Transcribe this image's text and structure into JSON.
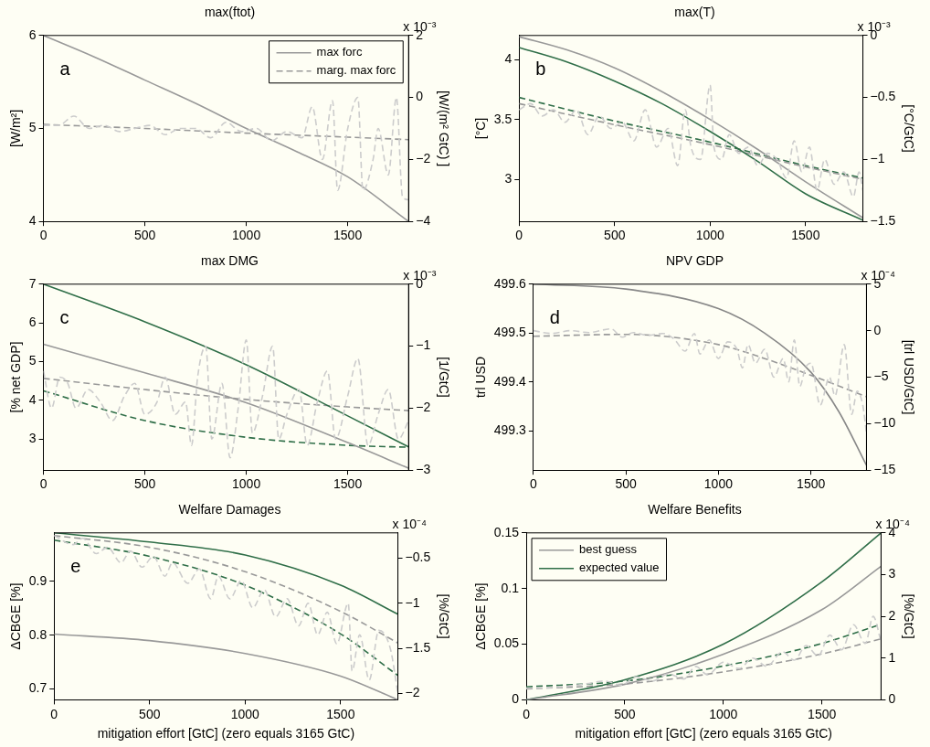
{
  "chart_data": [
    {
      "type": "line",
      "title": "max(ftot)",
      "ylabel": "[W/m²]",
      "y2label": "[W/(m² GtC) ]",
      "annotations": [
        "a",
        "x 10⁻³"
      ],
      "xlim": [
        0,
        1800
      ],
      "xticks": [
        0,
        500,
        1000,
        1500
      ],
      "ylim": [
        4,
        6
      ],
      "yticks": [
        4,
        5,
        6
      ],
      "y2lim": [
        -4,
        2
      ],
      "y2ticks": [
        -4,
        -2,
        0,
        2
      ],
      "legend": "top right",
      "series": [
        {
          "color": "#cccccc",
          "axis": "y2",
          "line_style": "dashed",
          "x": [
            0,
            75,
            150,
            225,
            300,
            375,
            450,
            525,
            600,
            675,
            750,
            825,
            900,
            975,
            1050,
            1125,
            1200,
            1275,
            1325,
            1375,
            1425,
            1450,
            1500,
            1550,
            1575,
            1625,
            1650,
            1700,
            1740,
            1770,
            1800
          ],
          "values": [
            -0.9,
            -0.9,
            -0.6,
            -1.0,
            -0.9,
            -1.1,
            -1.0,
            -0.9,
            -1.2,
            -1.0,
            -1.0,
            -1.3,
            -0.8,
            -1.1,
            -1.0,
            -1.4,
            -1.1,
            -1.3,
            -0.3,
            -2.0,
            -0.1,
            -3.0,
            -1.0,
            0.0,
            -3.0,
            -2.0,
            -1.0,
            -2.5,
            0.0,
            -3.2,
            -3.3
          ]
        },
        {
          "name": "max forc",
          "color": "#999999",
          "line_style": "solid",
          "x": [
            0,
            250,
            500,
            750,
            1000,
            1250,
            1500,
            1800
          ],
          "values": [
            6.0,
            5.77,
            5.52,
            5.27,
            5.0,
            4.75,
            4.48,
            4.0
          ]
        },
        {
          "name": "marg. max forc",
          "color": "#999999",
          "axis": "y2",
          "line_style": "dashed",
          "x": [
            0,
            500,
            1000,
            1500,
            1800
          ],
          "values": [
            -0.87,
            -1.0,
            -1.15,
            -1.28,
            -1.36
          ]
        }
      ]
    },
    {
      "type": "line",
      "title": "max(T)",
      "ylabel": "[°C]",
      "y2label": "[°C/GtC]",
      "annotations": [
        "b",
        "x 10⁻³"
      ],
      "xlim": [
        0,
        1800
      ],
      "xticks": [
        0,
        500,
        1000,
        1500
      ],
      "ylim": [
        2.65,
        4.2
      ],
      "yticks": [
        3,
        3.5,
        4
      ],
      "y2lim": [
        -1.5,
        0
      ],
      "y2ticks": [
        -1.5,
        -1,
        -0.5,
        0
      ],
      "series": [
        {
          "color": "#cccccc",
          "axis": "y2",
          "line_style": "dashed",
          "x": [
            0,
            60,
            120,
            180,
            240,
            300,
            360,
            420,
            480,
            540,
            600,
            660,
            720,
            780,
            830,
            870,
            900,
            950,
            1000,
            1020,
            1060,
            1100,
            1150,
            1200,
            1250,
            1300,
            1350,
            1400,
            1440,
            1480,
            1520,
            1560,
            1600,
            1650,
            1700,
            1750,
            1780,
            1800
          ],
          "values": [
            -0.6,
            -0.55,
            -0.65,
            -0.6,
            -0.7,
            -0.6,
            -0.8,
            -0.65,
            -0.75,
            -0.7,
            -0.85,
            -0.6,
            -0.9,
            -0.75,
            -1.05,
            -0.6,
            -0.9,
            -1.0,
            -0.4,
            -0.9,
            -1.0,
            -0.8,
            -0.95,
            -0.9,
            -1.05,
            -0.95,
            -1.0,
            -1.15,
            -0.85,
            -1.1,
            -0.9,
            -1.25,
            -1.0,
            -1.2,
            -1.1,
            -1.3,
            -1.1,
            -1.25
          ]
        },
        {
          "color": "#999999",
          "line_style": "solid",
          "x": [
            0,
            250,
            500,
            750,
            1000,
            1250,
            1500,
            1800
          ],
          "values": [
            4.19,
            4.08,
            3.93,
            3.73,
            3.5,
            3.25,
            2.98,
            2.68
          ]
        },
        {
          "color": "#2f6e48",
          "line_style": "solid",
          "x": [
            0,
            250,
            500,
            750,
            1000,
            1250,
            1500,
            1800
          ],
          "values": [
            4.1,
            3.98,
            3.82,
            3.63,
            3.4,
            3.15,
            2.88,
            2.66
          ]
        },
        {
          "color": "#999999",
          "axis": "y2",
          "line_style": "dashed",
          "x": [
            0,
            500,
            1000,
            1500,
            1800
          ],
          "values": [
            -0.55,
            -0.72,
            -0.88,
            -1.06,
            -1.16
          ]
        },
        {
          "color": "#2f6e48",
          "axis": "y2",
          "line_style": "dashed",
          "x": [
            0,
            500,
            1000,
            1500,
            1800
          ],
          "values": [
            -0.5,
            -0.69,
            -0.86,
            -1.05,
            -1.15
          ]
        }
      ]
    },
    {
      "type": "line",
      "title": "max DMG",
      "ylabel": "[% net GDP]",
      "y2label": "[1/GtC]",
      "annotations": [
        "c",
        "x 10⁻³"
      ],
      "xlim": [
        0,
        1800
      ],
      "xticks": [
        0,
        500,
        1000,
        1500
      ],
      "ylim": [
        2.2,
        7
      ],
      "yticks": [
        3,
        4,
        5,
        6,
        7
      ],
      "y2lim": [
        -3,
        0
      ],
      "y2ticks": [
        -3,
        -2,
        -1,
        0
      ],
      "series": [
        {
          "color": "#cccccc",
          "axis": "y2",
          "line_style": "dashed",
          "x": [
            0,
            40,
            80,
            120,
            160,
            220,
            280,
            340,
            400,
            450,
            500,
            560,
            600,
            650,
            700,
            730,
            760,
            800,
            830,
            880,
            920,
            960,
            1000,
            1030,
            1080,
            1130,
            1160,
            1200,
            1260,
            1300,
            1350,
            1400,
            1440,
            1500,
            1550,
            1600,
            1650,
            1700,
            1750,
            1800
          ],
          "values": [
            -1.4,
            -2.0,
            -1.5,
            -1.6,
            -2.0,
            -1.7,
            -1.9,
            -2.2,
            -1.8,
            -1.6,
            -2.1,
            -1.9,
            -1.5,
            -2.1,
            -1.9,
            -2.6,
            -1.5,
            -1.0,
            -2.5,
            -1.6,
            -2.8,
            -2.0,
            -0.9,
            -2.4,
            -1.8,
            -1.0,
            -2.5,
            -2.1,
            -1.7,
            -2.6,
            -1.9,
            -1.4,
            -2.5,
            -1.8,
            -1.2,
            -2.6,
            -2.1,
            -1.7,
            -2.5,
            -2.2
          ]
        },
        {
          "color": "#999999",
          "line_style": "solid",
          "x": [
            0,
            500,
            1000,
            1500,
            1800
          ],
          "values": [
            5.45,
            4.71,
            3.94,
            2.91,
            2.25
          ]
        },
        {
          "color": "#2f6e48",
          "line_style": "solid",
          "x": [
            0,
            500,
            1000,
            1500,
            1800
          ],
          "values": [
            7.0,
            6.03,
            4.92,
            3.6,
            2.8
          ]
        },
        {
          "color": "#999999",
          "axis": "y2",
          "line_style": "dashed",
          "x": [
            0,
            500,
            1000,
            1500,
            1800
          ],
          "values": [
            -1.52,
            -1.7,
            -1.86,
            -1.98,
            -2.04
          ]
        },
        {
          "color": "#2f6e48",
          "axis": "y2",
          "line_style": "dashed",
          "x": [
            0,
            500,
            1000,
            1500,
            1800
          ],
          "values": [
            -1.72,
            -2.2,
            -2.47,
            -2.6,
            -2.63
          ]
        }
      ]
    },
    {
      "type": "line",
      "title": "NPV GDP",
      "ylabel": "trl USD",
      "y2label": "[trl USD/GtC]",
      "annotations": [
        "d",
        "x 10⁻⁴"
      ],
      "xlim": [
        0,
        1800
      ],
      "xticks": [
        0,
        500,
        1000,
        1500
      ],
      "ylim": [
        499.22,
        499.6
      ],
      "yticks": [
        499.3,
        499.4,
        499.5,
        499.6
      ],
      "y2lim": [
        -15,
        5
      ],
      "y2ticks": [
        -15,
        -10,
        -5,
        0,
        5
      ],
      "series": [
        {
          "color": "#cccccc",
          "axis": "y2",
          "line_style": "dashed",
          "x": [
            0,
            100,
            200,
            300,
            420,
            480,
            540,
            620,
            700,
            760,
            820,
            870,
            900,
            950,
            1000,
            1050,
            1100,
            1130,
            1160,
            1200,
            1250,
            1300,
            1350,
            1380,
            1410,
            1440,
            1470,
            1500,
            1550,
            1600,
            1630,
            1680,
            1720,
            1750,
            1780,
            1800
          ],
          "values": [
            0,
            -0.3,
            0,
            -0.2,
            0.2,
            -0.7,
            -0.2,
            -0.5,
            -0.3,
            -0.9,
            -2.2,
            -0.3,
            -2.5,
            -1.0,
            -3.0,
            -1.2,
            -2.0,
            -4.0,
            -1.5,
            -3.5,
            -2.0,
            -5.0,
            -3.0,
            -5.5,
            -1.0,
            -6.0,
            -4.0,
            -3.5,
            -8.0,
            -5.0,
            -7.0,
            -1.5,
            -9.0,
            -6.5,
            -8.0,
            -11.0
          ]
        },
        {
          "color": "#888888",
          "line_style": "solid",
          "x": [
            0,
            500,
            1000,
            1250,
            1500,
            1650,
            1800
          ],
          "values": [
            499.6,
            499.59,
            499.55,
            499.5,
            499.42,
            499.34,
            499.23
          ]
        },
        {
          "color": "#999999",
          "axis": "y2",
          "line_style": "dashed",
          "x": [
            0,
            500,
            1000,
            1250,
            1500,
            1800
          ],
          "values": [
            -0.6,
            -0.4,
            -1.5,
            -3.0,
            -4.8,
            -7.1
          ]
        }
      ]
    },
    {
      "type": "line",
      "title": "Welfare Damages",
      "xlabel": "mitigation effort [GtC] (zero equals 3165 GtC)",
      "ylabel": "ΔCBGE [%]",
      "y2label": "[%/GtC]",
      "annotations": [
        "e",
        "x 10⁻⁴"
      ],
      "xlim": [
        0,
        1800
      ],
      "xticks": [
        0,
        500,
        1000,
        1500
      ],
      "ylim": [
        0.68,
        0.99
      ],
      "yticks": [
        0.7,
        0.8,
        0.9
      ],
      "y2lim": [
        -2.07,
        -0.22
      ],
      "y2ticks": [
        -2,
        -1.5,
        -1,
        -0.5
      ],
      "series": [
        {
          "color": "#cccccc",
          "axis": "y2",
          "line_style": "dashed",
          "x": [
            0,
            100,
            150,
            220,
            280,
            350,
            400,
            460,
            520,
            580,
            620,
            700,
            760,
            820,
            860,
            920,
            980,
            1040,
            1100,
            1160,
            1220,
            1280,
            1330,
            1380,
            1430,
            1480,
            1540,
            1560,
            1600,
            1650,
            1700,
            1760,
            1800
          ],
          "values": [
            -0.25,
            -0.35,
            -0.28,
            -0.45,
            -0.38,
            -0.55,
            -0.42,
            -0.6,
            -0.48,
            -0.7,
            -0.55,
            -0.78,
            -0.62,
            -0.95,
            -0.7,
            -0.95,
            -0.75,
            -1.05,
            -0.85,
            -1.15,
            -0.95,
            -1.25,
            -1.0,
            -1.35,
            -1.1,
            -1.45,
            -1.0,
            -1.75,
            -1.35,
            -1.85,
            -1.3,
            -1.5,
            -2.0
          ]
        },
        {
          "color": "#999999",
          "line_style": "solid",
          "x": [
            0,
            500,
            1000,
            1500,
            1800
          ],
          "values": [
            0.802,
            0.79,
            0.766,
            0.724,
            0.68
          ]
        },
        {
          "color": "#2f6e48",
          "line_style": "solid",
          "x": [
            0,
            500,
            1000,
            1500,
            1800
          ],
          "values": [
            0.99,
            0.973,
            0.949,
            0.893,
            0.839
          ]
        },
        {
          "color": "#999999",
          "axis": "y2",
          "line_style": "dashed",
          "x": [
            0,
            500,
            1000,
            1500,
            1800
          ],
          "values": [
            -0.25,
            -0.38,
            -0.65,
            -1.09,
            -1.44
          ]
        },
        {
          "color": "#2f6e48",
          "axis": "y2",
          "line_style": "dashed",
          "x": [
            0,
            500,
            1000,
            1500,
            1800
          ],
          "values": [
            -0.3,
            -0.48,
            -0.8,
            -1.34,
            -1.8
          ]
        }
      ]
    },
    {
      "type": "line",
      "title": "Welfare Benefits",
      "xlabel": "mitigation effort [GtC] (zero equals 3165 GtC)",
      "ylabel": "ΔCBGE [%]",
      "y2label": "[%/GtC]",
      "annotations": [
        "x 10⁻⁴"
      ],
      "xlim": [
        0,
        1800
      ],
      "xticks": [
        0,
        500,
        1000,
        1500
      ],
      "ylim": [
        0,
        0.15
      ],
      "yticks": [
        0,
        0.05,
        0.1,
        0.15
      ],
      "y2lim": [
        0,
        4
      ],
      "y2ticks": [
        0,
        1,
        2,
        3,
        4
      ],
      "legend": "top left",
      "series": [
        {
          "color": "#cccccc",
          "axis": "y2",
          "line_style": "dashed",
          "x": [
            0,
            150,
            300,
            400,
            480,
            560,
            640,
            720,
            800,
            860,
            920,
            1000,
            1080,
            1150,
            1220,
            1300,
            1360,
            1420,
            1480,
            1540,
            1600,
            1660,
            1720,
            1760,
            1800
          ],
          "values": [
            0.28,
            0.3,
            0.38,
            0.45,
            0.35,
            0.55,
            0.45,
            0.62,
            0.5,
            0.8,
            0.6,
            0.9,
            0.75,
            1.0,
            0.8,
            1.15,
            0.95,
            1.3,
            1.05,
            1.55,
            1.2,
            1.8,
            1.35,
            2.0,
            1.4
          ]
        },
        {
          "name": "best guess",
          "color": "#999999",
          "line_style": "solid",
          "x": [
            0,
            500,
            1000,
            1500,
            1800
          ],
          "values": [
            0,
            0.014,
            0.041,
            0.081,
            0.12
          ]
        },
        {
          "name": "expected value",
          "color": "#2f6e48",
          "line_style": "solid",
          "x": [
            0,
            500,
            1000,
            1500,
            1800
          ],
          "values": [
            0,
            0.018,
            0.05,
            0.106,
            0.15
          ]
        },
        {
          "color": "#999999",
          "axis": "y2",
          "line_style": "dashed",
          "x": [
            0,
            500,
            1000,
            1500,
            1800
          ],
          "values": [
            0.26,
            0.38,
            0.67,
            1.1,
            1.46
          ]
        },
        {
          "color": "#2f6e48",
          "axis": "y2",
          "line_style": "dashed",
          "x": [
            0,
            500,
            1000,
            1500,
            1800
          ],
          "values": [
            0.31,
            0.45,
            0.81,
            1.35,
            1.81
          ]
        }
      ]
    }
  ]
}
